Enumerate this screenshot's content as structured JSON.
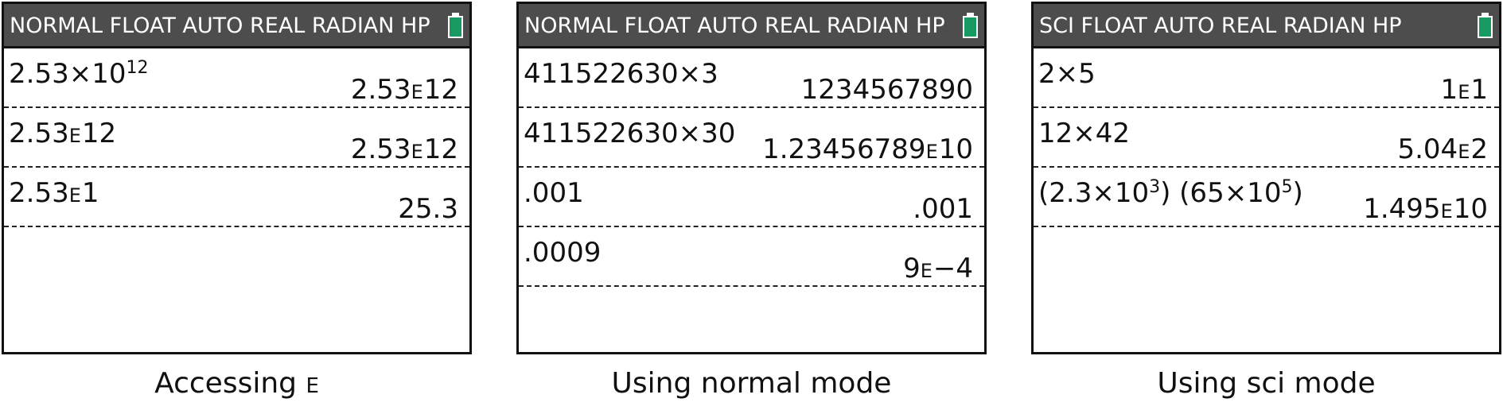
{
  "colors": {
    "status_bar_bg": "#4d4d4d",
    "battery": "#1a9a63",
    "frame": "#111111"
  },
  "screens": [
    {
      "status": "NORMAL FLOAT AUTO REAL RADIAN HP",
      "caption": {
        "text": "Accessing ",
        "symbol": "E"
      },
      "entries": [
        {
          "expr": [
            {
              "t": "2.53×10"
            },
            {
              "t": "12",
              "sup": true
            }
          ],
          "result": [
            {
              "t": "2.53"
            },
            {
              "t": "E",
              "ee": true
            },
            {
              "t": "12"
            }
          ]
        },
        {
          "expr": [
            {
              "t": "2.53"
            },
            {
              "t": "E",
              "ee": true
            },
            {
              "t": "12"
            }
          ],
          "result": [
            {
              "t": "2.53"
            },
            {
              "t": "E",
              "ee": true
            },
            {
              "t": "12"
            }
          ]
        },
        {
          "expr": [
            {
              "t": "2.53"
            },
            {
              "t": "E",
              "ee": true
            },
            {
              "t": "1"
            }
          ],
          "result": [
            {
              "t": "25.3"
            }
          ]
        }
      ]
    },
    {
      "status": "NORMAL FLOAT AUTO REAL RADIAN HP",
      "caption": {
        "text": "Using normal mode"
      },
      "entries": [
        {
          "expr": [
            {
              "t": "411522630×3"
            }
          ],
          "result": [
            {
              "t": "1234567890"
            }
          ]
        },
        {
          "expr": [
            {
              "t": "411522630×30"
            }
          ],
          "result": [
            {
              "t": "1.23456789"
            },
            {
              "t": "E",
              "ee": true
            },
            {
              "t": "10"
            }
          ]
        },
        {
          "expr": [
            {
              "t": ".001"
            }
          ],
          "result": [
            {
              "t": ".001"
            }
          ]
        },
        {
          "expr": [
            {
              "t": ".0009"
            }
          ],
          "result": [
            {
              "t": "9"
            },
            {
              "t": "E",
              "ee": true
            },
            {
              "t": "−4"
            }
          ]
        }
      ]
    },
    {
      "status": "SCI FLOAT AUTO REAL RADIAN HP",
      "caption": {
        "text": "Using sci mode"
      },
      "entries": [
        {
          "expr": [
            {
              "t": "2×5"
            }
          ],
          "result": [
            {
              "t": "1"
            },
            {
              "t": "E",
              "ee": true
            },
            {
              "t": "1"
            }
          ]
        },
        {
          "expr": [
            {
              "t": "12×42"
            }
          ],
          "result": [
            {
              "t": "5.04"
            },
            {
              "t": "E",
              "ee": true
            },
            {
              "t": "2"
            }
          ]
        },
        {
          "expr": [
            {
              "t": "(2.3×10"
            },
            {
              "t": "3",
              "sup": true
            },
            {
              "t": ") (65×10"
            },
            {
              "t": "5",
              "sup": true
            },
            {
              "t": ")"
            }
          ],
          "result": [
            {
              "t": "1.495"
            },
            {
              "t": "E",
              "ee": true
            },
            {
              "t": "10"
            }
          ]
        }
      ]
    }
  ]
}
